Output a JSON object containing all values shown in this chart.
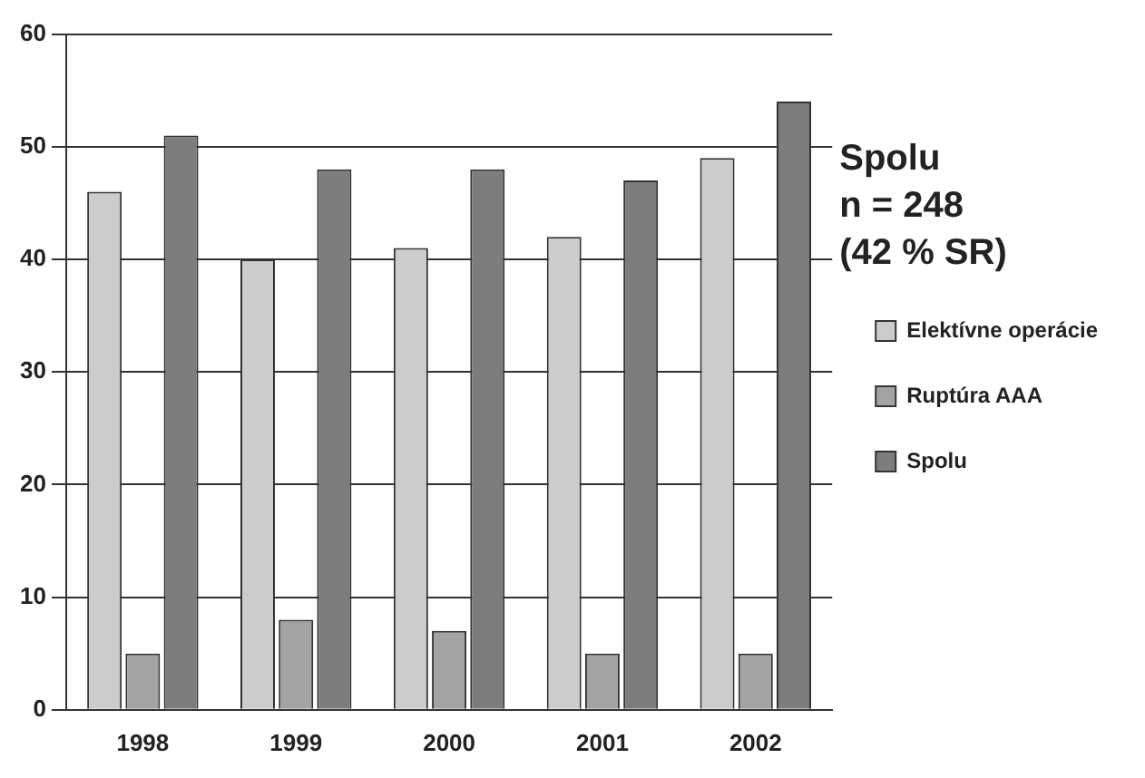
{
  "chart_data": {
    "type": "bar",
    "categories": [
      "1998",
      "1999",
      "2000",
      "2001",
      "2002"
    ],
    "series": [
      {
        "name": "Elektívne operácie",
        "color": "#cccccc",
        "values": [
          46,
          40,
          41,
          42,
          49
        ]
      },
      {
        "name": "Ruptúra AAA",
        "color": "#a3a3a3",
        "values": [
          5,
          8,
          7,
          5,
          5
        ]
      },
      {
        "name": "Spolu",
        "color": "#7d7d7d",
        "values": [
          51,
          48,
          48,
          47,
          54
        ]
      }
    ],
    "ylim": [
      0,
      60
    ],
    "yticks": [
      0,
      10,
      20,
      30,
      40,
      50,
      60
    ],
    "grid": "y",
    "legend": "right",
    "annotations": [
      "Spolu",
      "n = 248",
      "(42 % SR)"
    ]
  }
}
